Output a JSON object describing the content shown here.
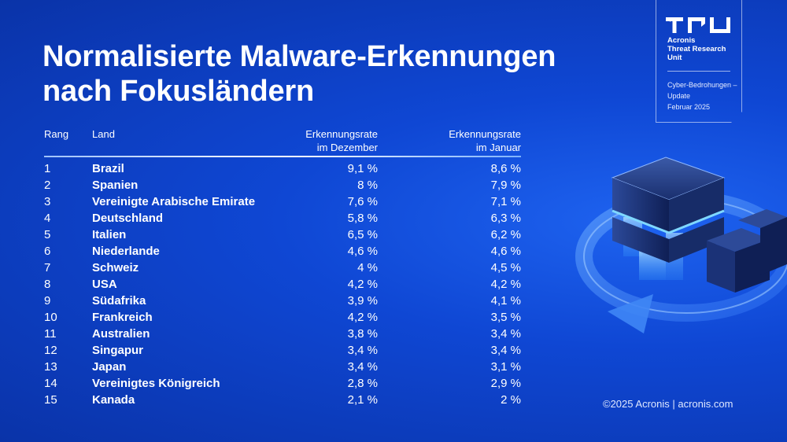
{
  "slide": {
    "title_line1": "Normalisierte Malware-Erkennungen",
    "title_line2": "nach Fokusländern"
  },
  "badge": {
    "logo_icon": "tru-logo-icon",
    "unit_line1": "Acronis",
    "unit_line2": "Threat Research",
    "unit_line3": "Unit",
    "sub_line1": "Cyber-Bedrohungen –",
    "sub_line2": "Update",
    "sub_line3": "Februar 2025"
  },
  "table": {
    "headers": {
      "rank": "Rang",
      "country": "Land",
      "dec_line1": "Erkennungsrate",
      "dec_line2": "im Dezember",
      "jan_line1": "Erkennungsrate",
      "jan_line2": "im Januar"
    },
    "rows": [
      {
        "rank": "1",
        "country": "Brazil",
        "dec": "9,1 %",
        "jan": "8,6 %"
      },
      {
        "rank": "2",
        "country": "Spanien",
        "dec": "8 %",
        "jan": "7,9 %"
      },
      {
        "rank": "3",
        "country": "Vereinigte Arabische Emirate",
        "dec": "7,6 %",
        "jan": "7,1 %"
      },
      {
        "rank": "4",
        "country": "Deutschland",
        "dec": "5,8 %",
        "jan": "6,3 %"
      },
      {
        "rank": "5",
        "country": "Italien",
        "dec": "6,5 %",
        "jan": "6,2 %"
      },
      {
        "rank": "6",
        "country": "Niederlande",
        "dec": "4,6 %",
        "jan": "4,6 %"
      },
      {
        "rank": "7",
        "country": "Schweiz",
        "dec": "4 %",
        "jan": "4,5 %"
      },
      {
        "rank": "8",
        "country": "USA",
        "dec": "4,2 %",
        "jan": "4,2 %"
      },
      {
        "rank": "9",
        "country": "Südafrika",
        "dec": "3,9 %",
        "jan": "4,1 %"
      },
      {
        "rank": "10",
        "country": "Frankreich",
        "dec": "4,2 %",
        "jan": "3,5 %"
      },
      {
        "rank": "11",
        "country": "Australien",
        "dec": "3,8 %",
        "jan": "3,4 %"
      },
      {
        "rank": "12",
        "country": "Singapur",
        "dec": "3,4 %",
        "jan": "3,4 %"
      },
      {
        "rank": "13",
        "country": "Japan",
        "dec": "3,4 %",
        "jan": "3,1 %"
      },
      {
        "rank": "14",
        "country": "Vereinigtes Königreich",
        "dec": "2,8 %",
        "jan": "2,9 %"
      },
      {
        "rank": "15",
        "country": "Kanada",
        "dec": "2,1 %",
        "jan": "2 %"
      }
    ]
  },
  "illustration": {
    "icon": "server-cycle-illustration-icon"
  },
  "footer": {
    "text": "©2025 Acronis  |  acronis.com"
  },
  "colors": {
    "background": "#0f47d4",
    "background_dark": "#0a33a8",
    "accent_glow": "#5cc8ff",
    "text": "#ffffff"
  }
}
